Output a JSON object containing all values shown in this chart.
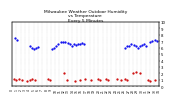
{
  "title": "Milwaukee Weather Outdoor Humidity\nvs Temperature\nEvery 5 Minutes",
  "title_fontsize": 3.2,
  "bg_color": "#ffffff",
  "blue_color": "#0000ee",
  "red_color": "#cc0000",
  "ylim": [
    0,
    100
  ],
  "xlim": [
    0,
    140
  ],
  "blue_x": [
    3,
    5,
    17,
    19,
    21,
    23,
    25,
    38,
    40,
    42,
    44,
    47,
    49,
    51,
    53,
    55,
    57,
    59,
    61,
    63,
    65,
    67,
    69,
    108,
    110,
    112,
    114,
    116,
    118,
    120,
    122,
    124,
    126,
    128,
    132,
    134,
    136,
    138
  ],
  "blue_y": [
    75,
    72,
    62,
    60,
    58,
    59,
    61,
    58,
    60,
    63,
    65,
    68,
    69,
    68,
    67,
    65,
    63,
    65,
    64,
    65,
    66,
    67,
    65,
    60,
    62,
    63,
    65,
    64,
    62,
    60,
    62,
    64,
    65,
    63,
    68,
    70,
    72,
    71
  ],
  "red_x": [
    2,
    4,
    7,
    10,
    14,
    17,
    19,
    22,
    34,
    36,
    50,
    52,
    60,
    65,
    70,
    75,
    82,
    84,
    90,
    92,
    100,
    104,
    108,
    110,
    115,
    118,
    122,
    130,
    132,
    136
  ],
  "red_y": [
    12,
    10,
    11,
    10,
    9,
    10,
    11,
    10,
    11,
    10,
    21,
    10,
    9,
    10,
    11,
    10,
    11,
    10,
    11,
    10,
    11,
    10,
    11,
    10,
    21,
    22,
    21,
    10,
    9,
    10
  ],
  "grid_color": "#bbbbbb",
  "grid_linewidth": 0.3,
  "grid_linestyle": ":",
  "marker_size": 1.2,
  "right_yticks": [
    100,
    90,
    80,
    70,
    60,
    50,
    40,
    30,
    20,
    10,
    0
  ],
  "right_ylabels": [
    "10",
    "9",
    "8",
    "7",
    "6",
    "5",
    "4",
    "3",
    "2",
    "1",
    "0"
  ],
  "ylabel_fontsize": 2.8,
  "xlabel_fontsize": 2.2,
  "n_xticks": 35
}
